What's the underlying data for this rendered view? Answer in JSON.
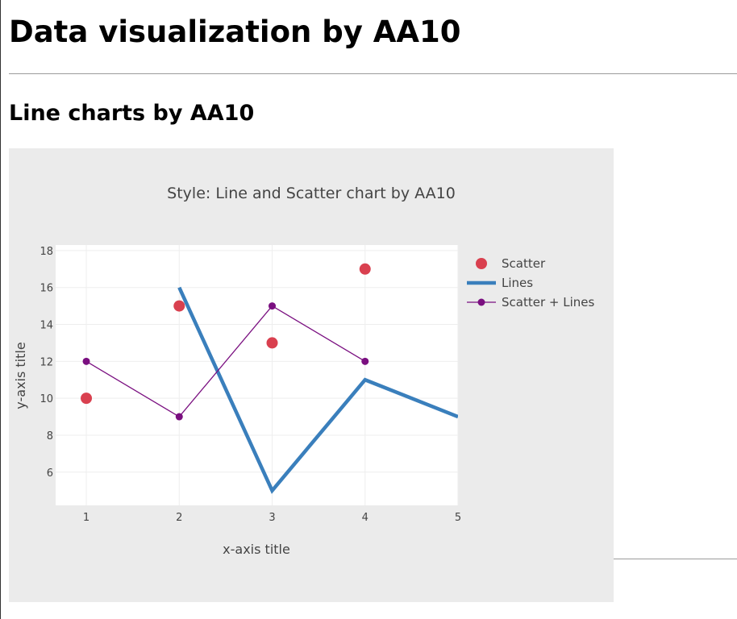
{
  "page": {
    "title": "Data visualization by AA10",
    "section_title": "Line charts by AA10"
  },
  "chart_data": {
    "type": "line",
    "title": "Style: Line and Scatter chart by AA10",
    "xlabel": "x-axis title",
    "ylabel": "y-axis title",
    "xlim": [
      0.67,
      5
    ],
    "ylim": [
      4.2,
      18.3
    ],
    "x_ticks": [
      1,
      2,
      3,
      4,
      5
    ],
    "y_ticks": [
      6,
      8,
      10,
      12,
      14,
      16,
      18
    ],
    "grid": true,
    "legend_position": "right",
    "series": [
      {
        "name": "Scatter",
        "mode": "markers",
        "color": "#d9404f",
        "x": [
          1,
          2,
          3,
          4
        ],
        "y": [
          10,
          15,
          13,
          17
        ]
      },
      {
        "name": "Lines",
        "mode": "lines",
        "color": "#3a7fbc",
        "x": [
          2,
          3,
          4,
          5
        ],
        "y": [
          16,
          5,
          11,
          9
        ]
      },
      {
        "name": "Scatter + Lines",
        "mode": "lines+markers",
        "color": "#7a0f80",
        "x": [
          1,
          2,
          3,
          4
        ],
        "y": [
          12,
          9,
          15,
          12
        ]
      }
    ]
  }
}
